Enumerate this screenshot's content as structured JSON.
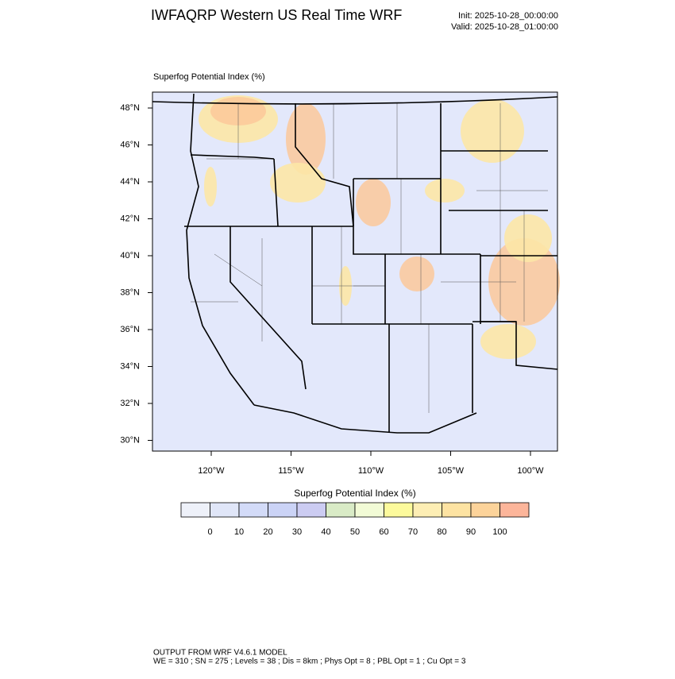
{
  "header": {
    "title": "IWFAQRP Western US Real Time WRF",
    "init": "Init: 2025-10-28_00:00:00",
    "valid": "Valid: 2025-10-28_01:00:00"
  },
  "map": {
    "title": "Superfog Potential Index   (%)",
    "lat_labels": [
      "48°N",
      "46°N",
      "44°N",
      "42°N",
      "40°N",
      "38°N",
      "36°N",
      "34°N",
      "32°N",
      "30°N"
    ],
    "lon_labels": [
      "120°W",
      "115°W",
      "110°W",
      "105°W",
      "100°W"
    ]
  },
  "colorbar": {
    "title": "Superfog Potential Index  (%)",
    "colors": [
      "#eef1f9",
      "#e0e6f8",
      "#d3dbf8",
      "#cbd3f6",
      "#ccccf2",
      "#d9ebc6",
      "#f2fbd6",
      "#fcfa9c",
      "#fdeeb4",
      "#fde3a2",
      "#fcd39a",
      "#fcb59a"
    ],
    "labels": [
      0,
      10,
      20,
      30,
      40,
      50,
      60,
      70,
      80,
      90,
      100
    ]
  },
  "footer": {
    "line1": "OUTPUT FROM WRF V4.6.1 MODEL",
    "line2": "WE = 310 ; SN = 275 ; Levels = 38 ; Dis = 8km ; Phys Opt = 8 ; PBL Opt = 1 ; Cu Opt = 3"
  }
}
